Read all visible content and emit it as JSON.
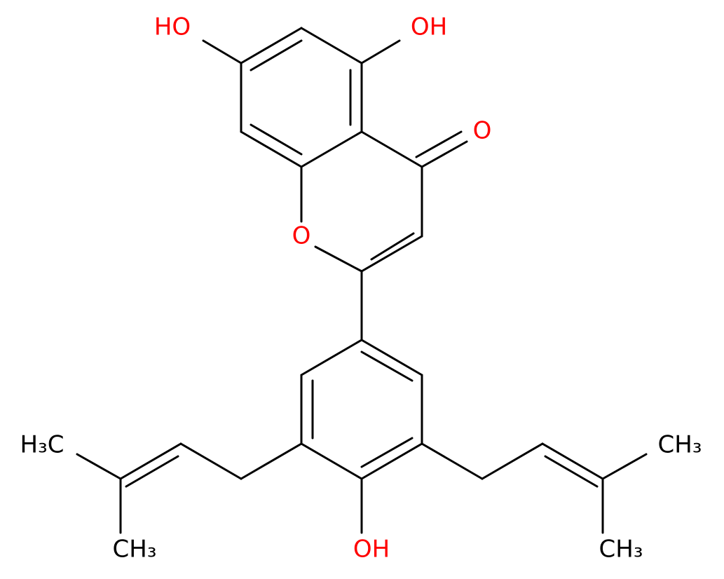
{
  "atoms": [
    {
      "label": "HO"
    },
    {
      "label": "OH"
    },
    {
      "label": "O"
    },
    {
      "label": "O"
    },
    {
      "label": "H₃C"
    },
    {
      "label": "CH₃"
    },
    {
      "label": "OH"
    },
    {
      "label": "CH₃"
    },
    {
      "label": "CH₃"
    }
  ]
}
